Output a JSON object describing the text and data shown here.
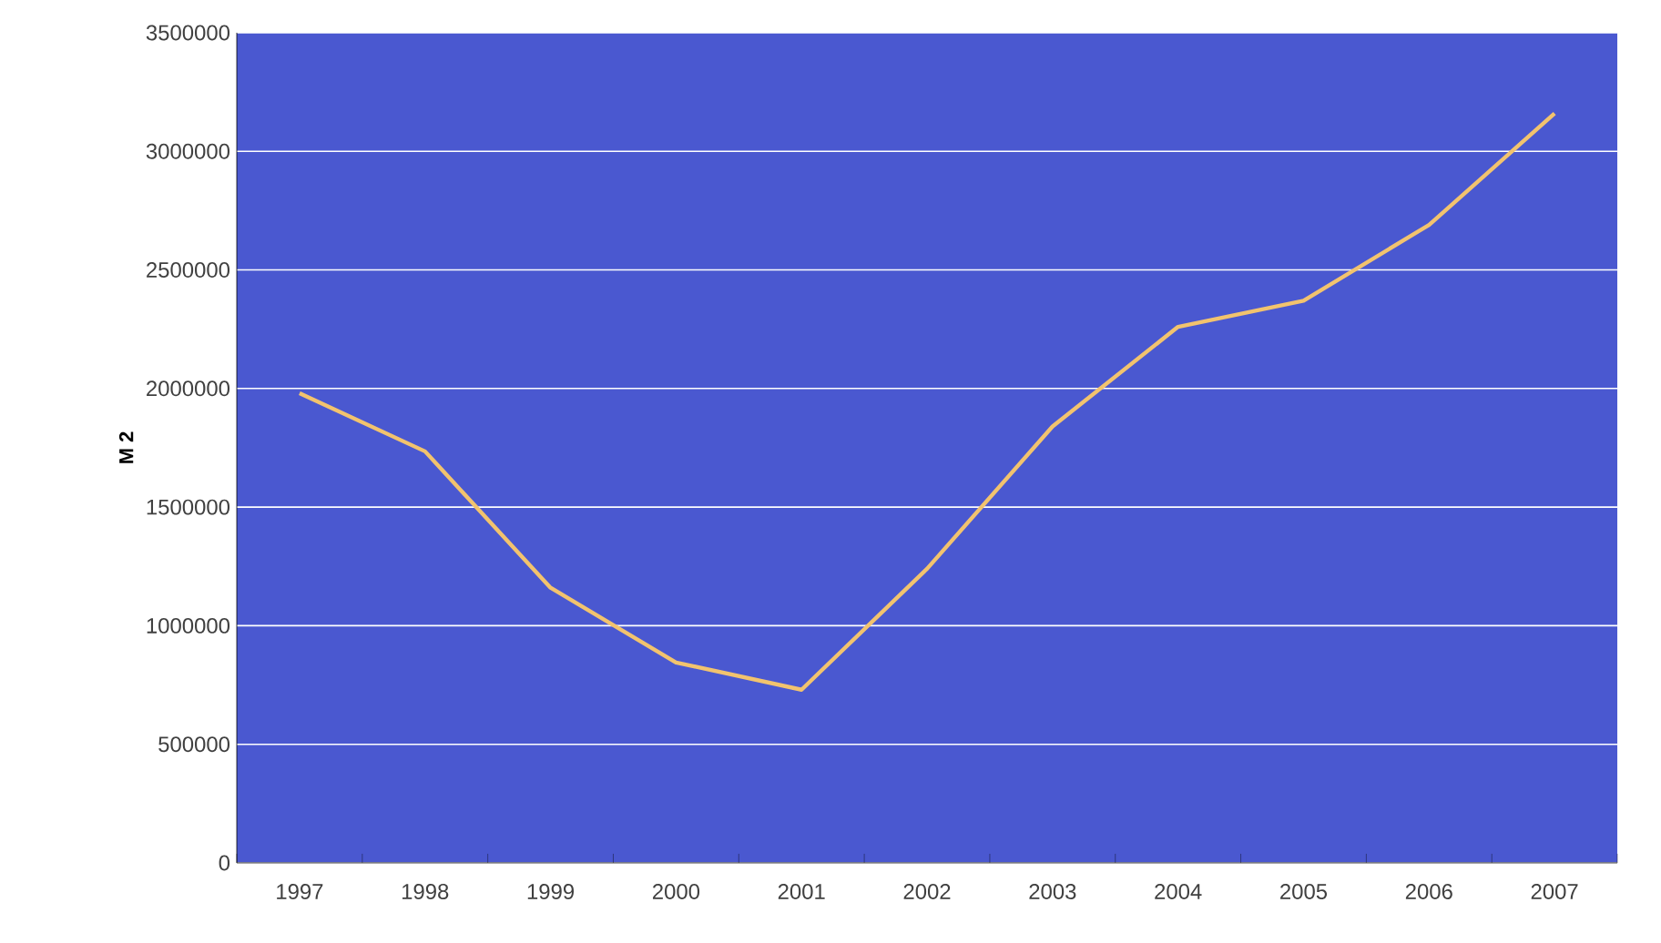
{
  "chart_data": {
    "type": "line",
    "ylabel": "M 2",
    "categories": [
      "1997",
      "1998",
      "1999",
      "2000",
      "2001",
      "2002",
      "2003",
      "2004",
      "2005",
      "2006",
      "2007"
    ],
    "series": [
      {
        "color": "#f2c36e",
        "values": [
          1980000,
          1735000,
          1160000,
          845000,
          730000,
          1240000,
          1840000,
          2260000,
          2370000,
          2690000,
          3160000
        ]
      }
    ],
    "ylim": [
      0,
      3500000
    ],
    "yticks": [
      0,
      500000,
      1000000,
      1500000,
      2000000,
      2500000,
      3000000,
      3500000
    ],
    "grid": "y"
  }
}
